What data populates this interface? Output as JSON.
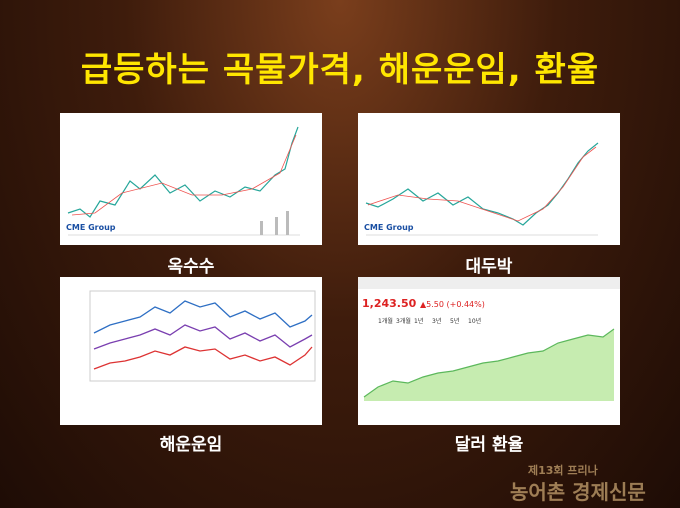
{
  "title": "급등하는 곡물가격, 해운운임, 환율",
  "panels": [
    {
      "label": "옥수수",
      "source": "CME Group"
    },
    {
      "label": "대두박",
      "source": "CME Group"
    },
    {
      "label": "해운운임"
    },
    {
      "label": "달러 환율",
      "price": "1,243.50",
      "change": "▲5.50 (+0.44%)",
      "ranges": [
        "1개월",
        "3개월",
        "1년",
        "3년",
        "5년",
        "10년"
      ]
    }
  ],
  "watermark": [
    "제13회 프리나",
    "농어촌 경제신문"
  ]
}
